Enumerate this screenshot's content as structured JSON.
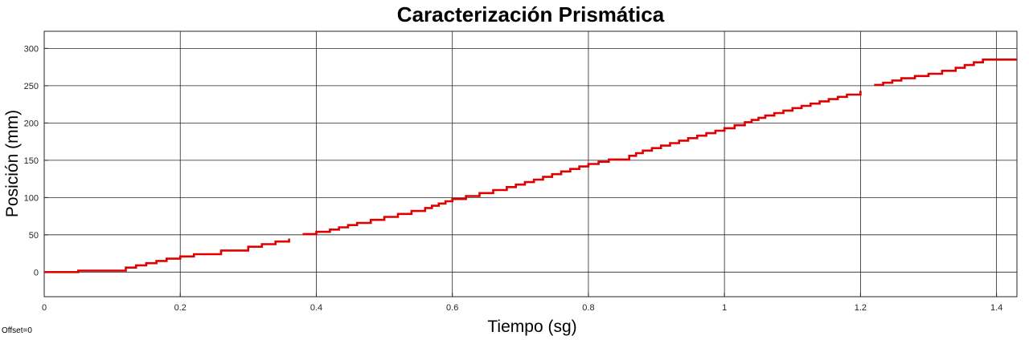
{
  "chart_data": {
    "type": "line",
    "title": "Caracterización Prismática",
    "xlabel": "Tiempo (sg)",
    "ylabel": "Posición (mm)",
    "footer_note": "Offset=0",
    "xlim": [
      0,
      1.43
    ],
    "ylim": [
      -33,
      323
    ],
    "xticks": [
      0,
      0.2,
      0.4,
      0.6,
      0.8,
      1,
      1.2,
      1.4
    ],
    "xtick_labels": [
      "0",
      "0.2",
      "0.4",
      "0.6",
      "0.8",
      "1",
      "1.2",
      "1.4"
    ],
    "yticks": [
      0,
      50,
      100,
      150,
      200,
      250,
      300
    ],
    "ytick_labels": [
      "0",
      "50",
      "100",
      "150",
      "200",
      "250",
      "300"
    ],
    "grid": true,
    "line_color": "#e00000",
    "grid_color": "#262626",
    "series": [
      {
        "segments": [
          [
            [
              0,
              0
            ],
            [
              0.03,
              0
            ],
            [
              0.05,
              2
            ],
            [
              0.09,
              2
            ],
            [
              0.12,
              6
            ],
            [
              0.15,
              12
            ],
            [
              0.18,
              18
            ],
            [
              0.2,
              21
            ],
            [
              0.22,
              24
            ],
            [
              0.26,
              29
            ],
            [
              0.3,
              34
            ],
            [
              0.34,
              41
            ],
            [
              0.36,
              45
            ]
          ],
          [
            [
              0.38,
              51
            ],
            [
              0.42,
              57
            ],
            [
              0.46,
              66
            ],
            [
              0.5,
              74
            ],
            [
              0.54,
              82
            ],
            [
              0.56,
              86
            ],
            [
              0.58,
              92
            ],
            [
              0.6,
              98
            ],
            [
              0.64,
              106
            ],
            [
              0.68,
              114
            ],
            [
              0.72,
              124
            ],
            [
              0.76,
              135
            ],
            [
              0.8,
              145
            ],
            [
              0.83,
              151
            ],
            [
              0.86,
              156
            ],
            [
              0.88,
              163
            ],
            [
              0.92,
              173
            ],
            [
              0.96,
              183
            ],
            [
              1.0,
              193
            ],
            [
              1.03,
              201
            ],
            [
              1.06,
              210
            ],
            [
              1.1,
              220
            ],
            [
              1.14,
              229
            ],
            [
              1.18,
              238
            ],
            [
              1.2,
              243
            ]
          ],
          [
            [
              1.22,
              251
            ],
            [
              1.26,
              260
            ],
            [
              1.3,
              266
            ],
            [
              1.34,
              274
            ],
            [
              1.38,
              285
            ],
            [
              1.43,
              285
            ]
          ]
        ]
      }
    ]
  }
}
